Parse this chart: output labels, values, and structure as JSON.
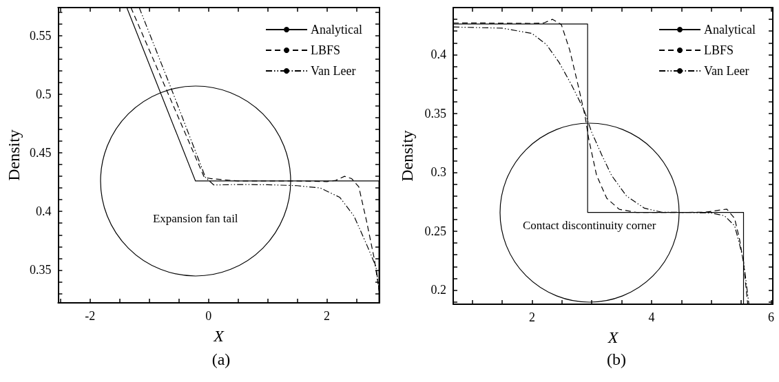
{
  "chart_data": [
    {
      "type": "line",
      "title": "(a)",
      "xlabel": "X",
      "ylabel": "Density",
      "legend": "top right",
      "grid": false,
      "xlim": [
        -2.54,
        2.89
      ],
      "ylim": [
        0.322,
        0.574
      ],
      "xticks": [
        {
          "value": -2.5,
          "label": null
        },
        -2,
        {
          "value": -1.5,
          "label": null
        },
        {
          "value": -1,
          "label": null
        },
        {
          "value": -0.5,
          "label": null
        },
        0,
        {
          "value": 0.5,
          "label": null
        },
        {
          "value": 1,
          "label": null
        },
        {
          "value": 1.5,
          "label": null
        },
        2,
        {
          "value": 2.5,
          "label": null
        }
      ],
      "yticks": [
        {
          "value": 0.33,
          "label": null
        },
        {
          "value": 0.34,
          "label": null
        },
        0.35,
        {
          "value": 0.36,
          "label": null
        },
        {
          "value": 0.37,
          "label": null
        },
        {
          "value": 0.38,
          "label": null
        },
        {
          "value": 0.39,
          "label": null
        },
        0.4,
        {
          "value": 0.41,
          "label": null
        },
        {
          "value": 0.42,
          "label": null
        },
        {
          "value": 0.43,
          "label": null
        },
        {
          "value": 0.44,
          "label": null
        },
        0.45,
        {
          "value": 0.46,
          "label": null
        },
        {
          "value": 0.47,
          "label": null
        },
        {
          "value": 0.48,
          "label": null
        },
        {
          "value": 0.49,
          "label": null
        },
        0.5,
        {
          "value": 0.51,
          "label": null
        },
        {
          "value": 0.52,
          "label": null
        },
        {
          "value": 0.53,
          "label": null
        },
        {
          "value": 0.54,
          "label": null
        },
        0.55,
        {
          "value": 0.56,
          "label": null
        },
        {
          "value": 0.57,
          "label": null
        }
      ],
      "marker": "none",
      "annotations": [
        {
          "text": "Expansion fan tail",
          "x": -0.22,
          "y": 0.426
        }
      ],
      "series": [
        {
          "name": "Analytical",
          "color": "#000000",
          "line_style": "solid",
          "x": [
            -1.38,
            -0.22,
            2.88,
            2.88
          ],
          "values": [
            0.574,
            0.426,
            0.426,
            0.322
          ]
        },
        {
          "name": "LBFS",
          "color": "#000000",
          "line_style": "dashed",
          "x": [
            -1.31,
            -0.07,
            0.05,
            0.5,
            1.5,
            2.0,
            2.15,
            2.3,
            2.42,
            2.54,
            2.67,
            2.8,
            2.89
          ],
          "values": [
            0.574,
            0.429,
            0.428,
            0.426,
            0.426,
            0.4255,
            0.4265,
            0.43,
            0.428,
            0.421,
            0.392,
            0.36,
            0.33
          ]
        },
        {
          "name": "Van Leer",
          "color": "#000000",
          "line_style": "dotted",
          "x": [
            -1.17,
            -0.63,
            -0.05,
            0.09,
            0.5,
            1.0,
            1.5,
            1.89,
            2.22,
            2.46,
            2.67,
            2.83,
            2.89
          ],
          "values": [
            0.574,
            0.505,
            0.429,
            0.4226,
            0.423,
            0.4228,
            0.422,
            0.42,
            0.412,
            0.396,
            0.372,
            0.353,
            0.33
          ]
        }
      ]
    },
    {
      "type": "line",
      "title": "(b)",
      "xlabel": "X",
      "ylabel": "Density",
      "legend": "top right",
      "grid": false,
      "xlim": [
        0.68,
        6.03
      ],
      "ylim": [
        0.188,
        0.44
      ],
      "xticks": [
        {
          "value": 1,
          "label": null
        },
        {
          "value": 1.5,
          "label": null
        },
        2,
        {
          "value": 2.5,
          "label": null
        },
        {
          "value": 3,
          "label": null
        },
        {
          "value": 3.5,
          "label": null
        },
        4,
        {
          "value": 4.5,
          "label": null
        },
        {
          "value": 5,
          "label": null
        },
        {
          "value": 5.5,
          "label": null
        },
        6
      ],
      "yticks": [
        {
          "value": 0.19,
          "label": null
        },
        0.2,
        {
          "value": 0.21,
          "label": null
        },
        {
          "value": 0.22,
          "label": null
        },
        {
          "value": 0.23,
          "label": null
        },
        {
          "value": 0.24,
          "label": null
        },
        0.25,
        {
          "value": 0.26,
          "label": null
        },
        {
          "value": 0.27,
          "label": null
        },
        {
          "value": 0.28,
          "label": null
        },
        {
          "value": 0.29,
          "label": null
        },
        0.3,
        {
          "value": 0.31,
          "label": null
        },
        {
          "value": 0.32,
          "label": null
        },
        {
          "value": 0.33,
          "label": null
        },
        {
          "value": 0.34,
          "label": null
        },
        0.35,
        {
          "value": 0.36,
          "label": null
        },
        {
          "value": 0.37,
          "label": null
        },
        {
          "value": 0.38,
          "label": null
        },
        {
          "value": 0.39,
          "label": null
        },
        0.4,
        {
          "value": 0.41,
          "label": null
        },
        {
          "value": 0.42,
          "label": null
        },
        {
          "value": 0.43,
          "label": null
        }
      ],
      "marker": "none",
      "annotations": [
        {
          "text": "Contact discontinuity corner",
          "x": 2.96,
          "y": 0.266
        }
      ],
      "series": [
        {
          "name": "Analytical",
          "color": "#000000",
          "line_style": "solid",
          "x": [
            0.68,
            2.93,
            2.93,
            5.54,
            5.54
          ],
          "values": [
            0.426,
            0.426,
            0.266,
            0.266,
            0.188
          ]
        },
        {
          "name": "LBFS",
          "color": "#000000",
          "line_style": "dashed",
          "x": [
            0.68,
            1.5,
            2.0,
            2.2,
            2.34,
            2.49,
            2.63,
            2.78,
            2.89,
            2.95,
            3.08,
            3.25,
            3.46,
            3.75,
            4.5,
            4.9,
            5.26,
            5.39,
            5.47,
            5.54,
            5.61
          ],
          "values": [
            0.427,
            0.4268,
            0.4265,
            0.427,
            0.43,
            0.4256,
            0.404,
            0.372,
            0.347,
            0.328,
            0.2975,
            0.278,
            0.2686,
            0.266,
            0.266,
            0.2662,
            0.2688,
            0.261,
            0.244,
            0.223,
            0.188
          ]
        },
        {
          "name": "Van Leer",
          "color": "#000000",
          "line_style": "dotted",
          "x": [
            0.68,
            1.5,
            2.0,
            2.24,
            2.45,
            2.66,
            2.87,
            3.0,
            3.17,
            3.33,
            3.58,
            3.88,
            4.17,
            4.6,
            5.0,
            5.22,
            5.39,
            5.47,
            5.54,
            5.63
          ],
          "values": [
            0.4235,
            0.4225,
            0.418,
            0.4086,
            0.3936,
            0.3744,
            0.353,
            0.3338,
            0.3145,
            0.2975,
            0.28,
            0.2696,
            0.2662,
            0.266,
            0.2655,
            0.2632,
            0.2547,
            0.2397,
            0.2245,
            0.188
          ]
        }
      ]
    }
  ]
}
